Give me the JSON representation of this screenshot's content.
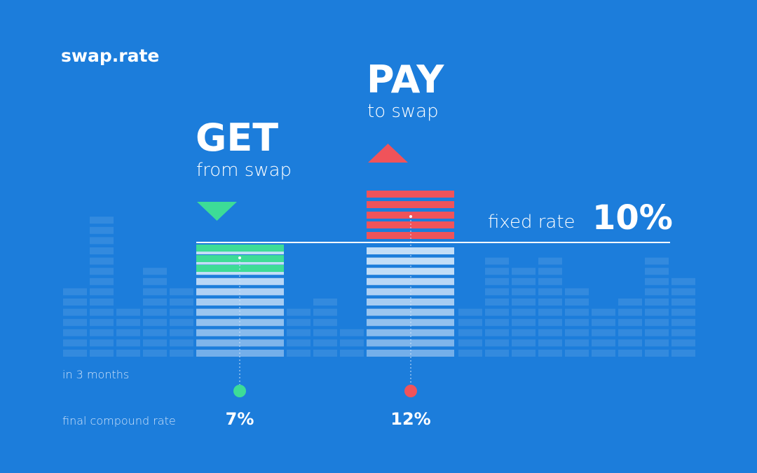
{
  "logo": "swap.rate",
  "get": {
    "title": "GET",
    "subtitle": "from swap",
    "rate": "7%"
  },
  "pay": {
    "title": "PAY",
    "subtitle": "to swap",
    "rate": "12%"
  },
  "fixed_rate": {
    "label": "fixed rate",
    "value": "10%"
  },
  "labels": {
    "period": "in 3 months",
    "final": "final compound rate"
  }
}
